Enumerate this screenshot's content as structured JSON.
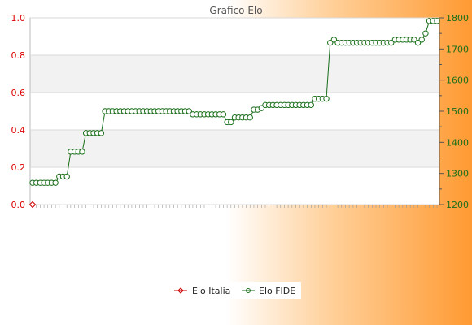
{
  "chart_data": {
    "type": "line",
    "title": "Grafico Elo",
    "colors": {
      "left_axis": "#dd0000",
      "right_axis": "#1a6e1a",
      "italia": "#cc0000",
      "fide": "#1a6e1a",
      "band": "#f2f2f2",
      "grid": "#d9d9d9"
    },
    "left_axis": {
      "ylim": [
        0,
        1
      ],
      "ticks": [
        "0.0",
        "0.2",
        "0.4",
        "0.6",
        "0.8",
        "1.0"
      ]
    },
    "right_axis": {
      "ylim": [
        1200,
        1800
      ],
      "ticks": [
        "1200",
        "1300",
        "1400",
        "1500",
        "1600",
        "1700",
        "1800"
      ]
    },
    "legend": {
      "placement": "bottom-center"
    },
    "series": [
      {
        "name": "Elo Italia",
        "axis": "left",
        "values": [
          0
        ]
      },
      {
        "name": "Elo FIDE",
        "axis": "right",
        "values": [
          1270,
          1270,
          1270,
          1270,
          1270,
          1270,
          1270,
          1290,
          1290,
          1290,
          1370,
          1370,
          1370,
          1370,
          1430,
          1430,
          1430,
          1430,
          1430,
          1500,
          1500,
          1500,
          1500,
          1500,
          1500,
          1500,
          1500,
          1500,
          1500,
          1500,
          1500,
          1500,
          1500,
          1500,
          1500,
          1500,
          1500,
          1500,
          1500,
          1500,
          1500,
          1500,
          1490,
          1490,
          1490,
          1490,
          1490,
          1490,
          1490,
          1490,
          1490,
          1465,
          1465,
          1480,
          1480,
          1480,
          1480,
          1480,
          1505,
          1505,
          1510,
          1520,
          1520,
          1520,
          1520,
          1520,
          1520,
          1520,
          1520,
          1520,
          1520,
          1520,
          1520,
          1520,
          1540,
          1540,
          1540,
          1540,
          1720,
          1730,
          1720,
          1720,
          1720,
          1720,
          1720,
          1720,
          1720,
          1720,
          1720,
          1720,
          1720,
          1720,
          1720,
          1720,
          1720,
          1730,
          1730,
          1730,
          1730,
          1730,
          1730,
          1720,
          1730,
          1750,
          1790,
          1790,
          1790
        ]
      }
    ]
  }
}
